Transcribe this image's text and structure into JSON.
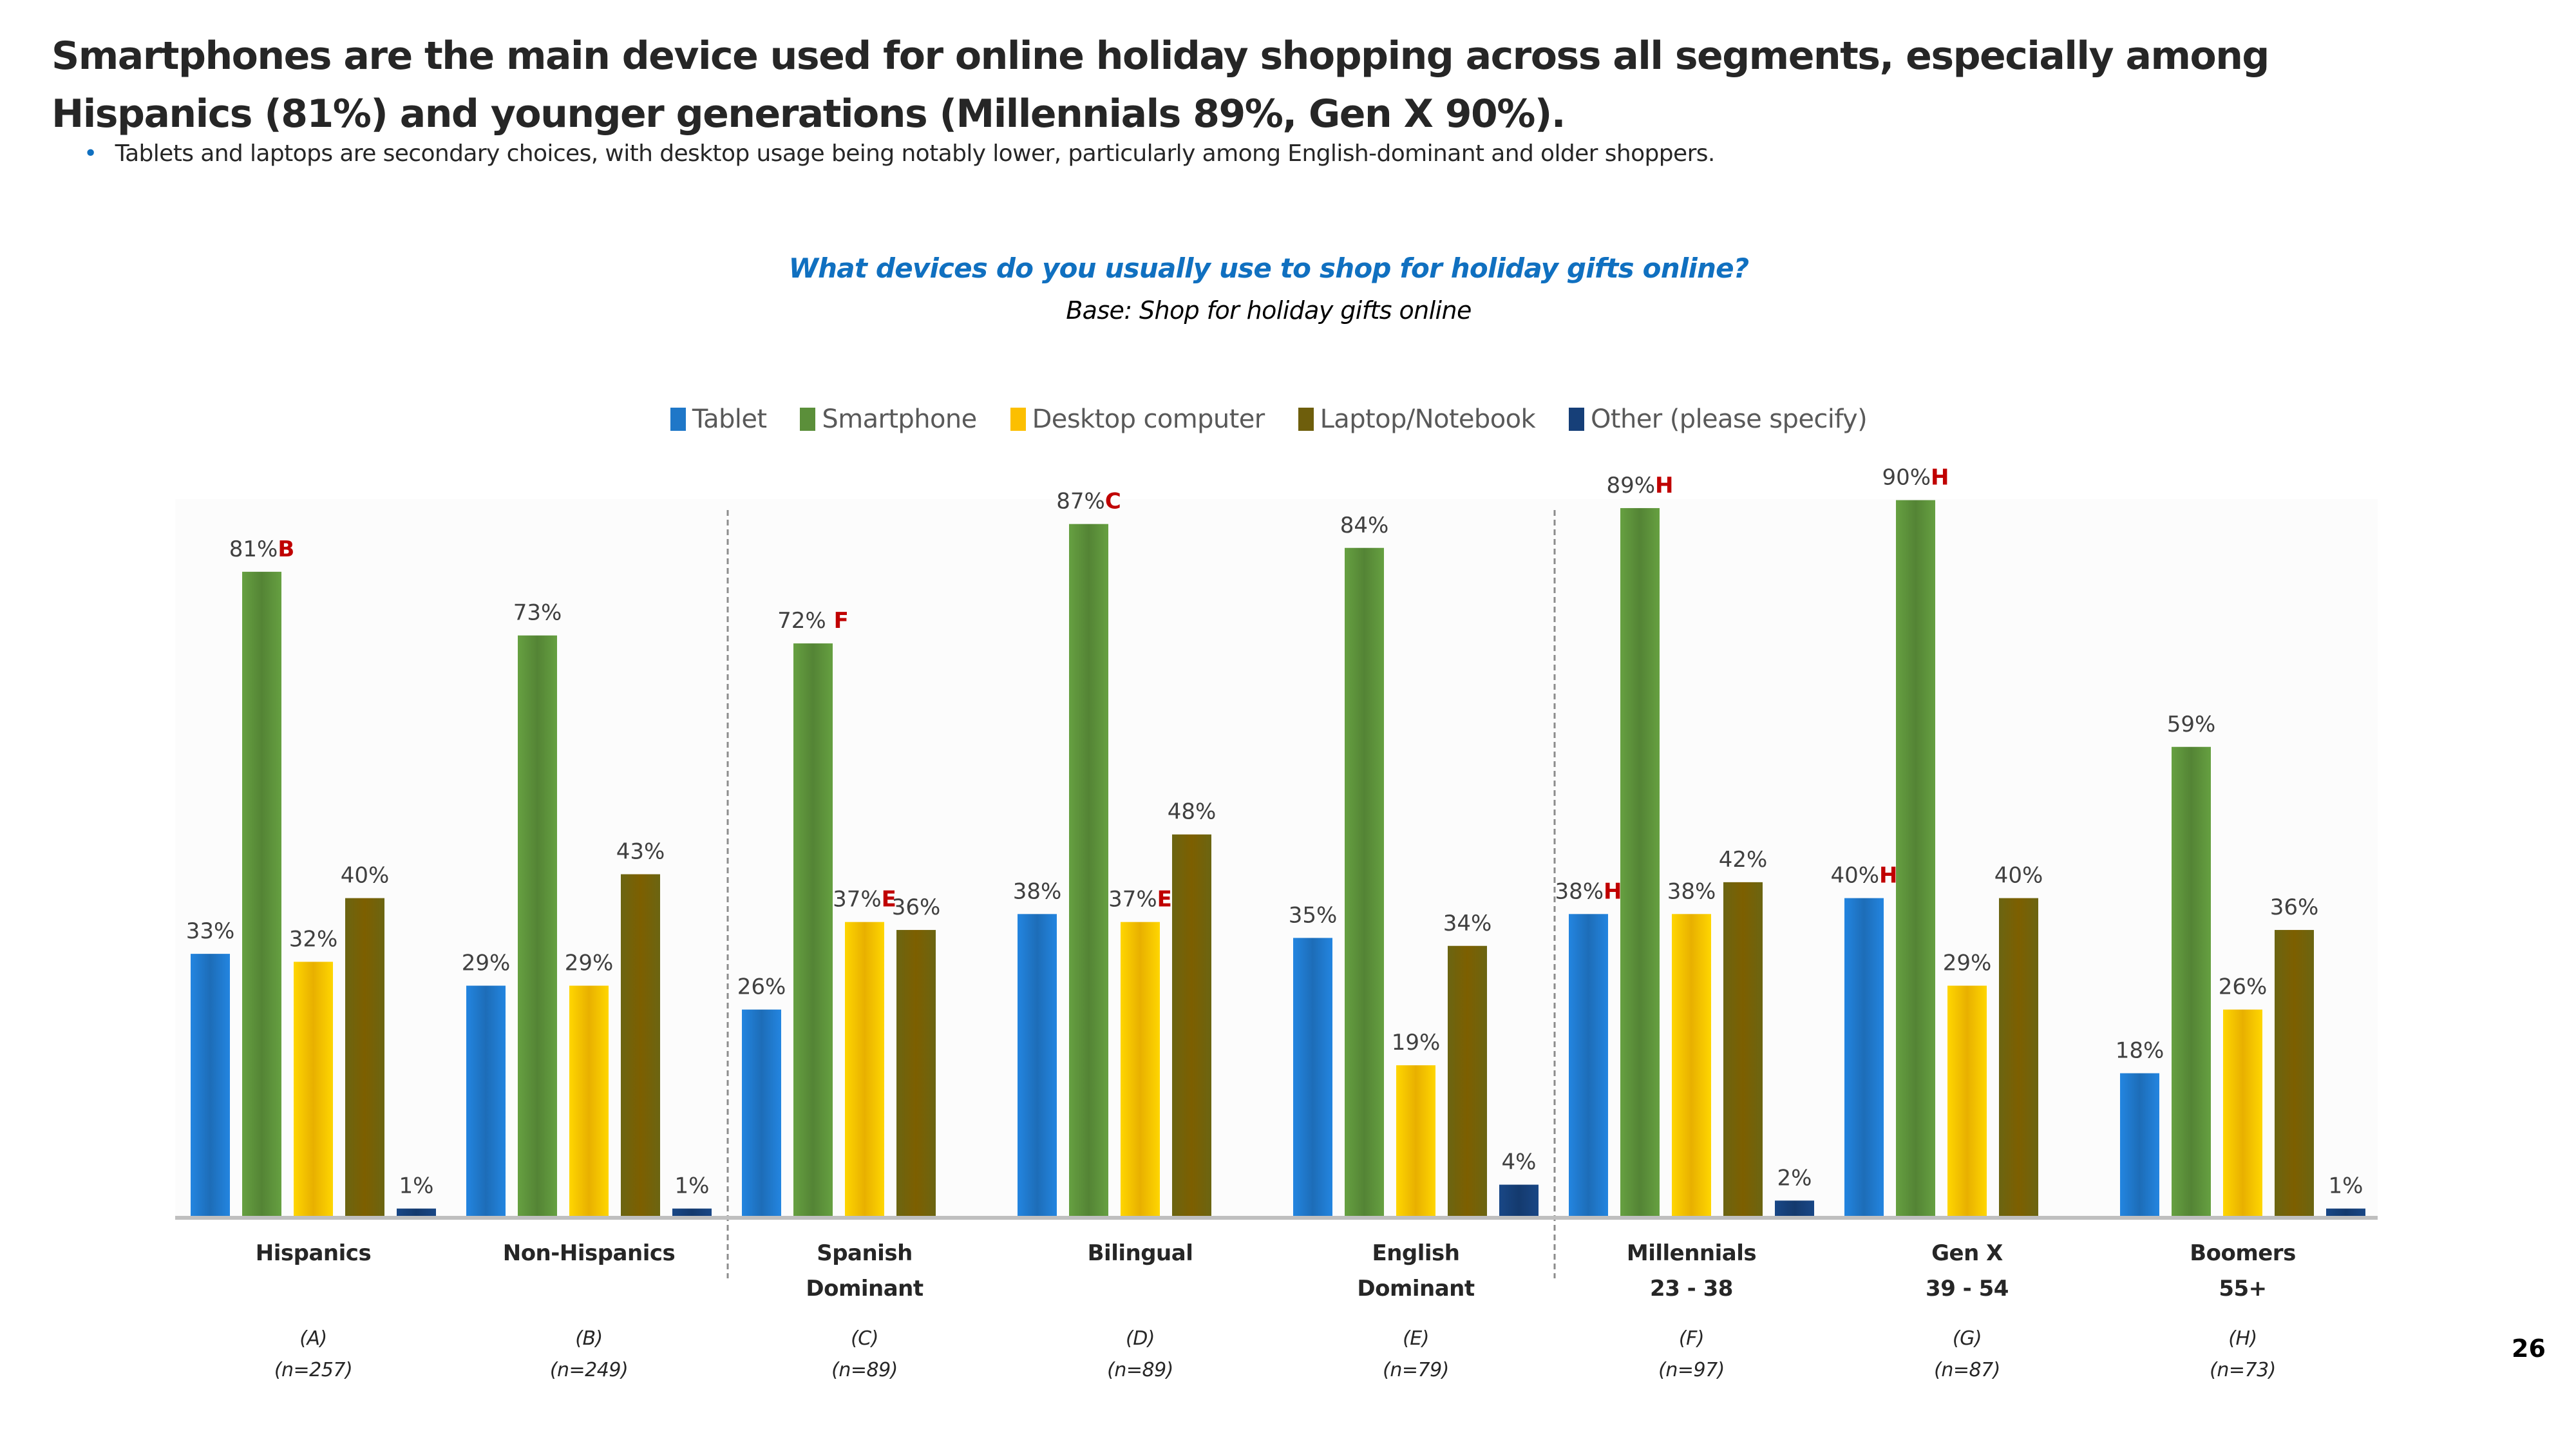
{
  "slide": {
    "title": "Smartphones are the main device used for online holiday shopping across all segments, especially among Hispanics (81%) and younger generations (Millennials 89%, Gen X 90%).",
    "bullet": "Tablets and laptops are secondary choices, with desktop usage being notably lower, particularly among English-dominant and older shoppers.",
    "page_number": "26",
    "accent_color": "#1070c0",
    "significance_color": "#c00000"
  },
  "chart_data": {
    "type": "bar",
    "title": "What devices do you usually use to shop for holiday gifts online?",
    "subtitle": "Base: Shop for holiday gifts online",
    "xlabel": "",
    "ylabel": "",
    "ylim": [
      0,
      100
    ],
    "grid": false,
    "legend_position": "top",
    "categories": [
      "Hispanics",
      "Non-Hispanics",
      "Spanish Dominant",
      "Bilingual",
      "English Dominant",
      "Millennials 23 - 38",
      "Gen X 39 - 54",
      "Boomers 55+"
    ],
    "category_lines": [
      [
        "Hispanics"
      ],
      [
        "Non-Hispanics"
      ],
      [
        "Spanish",
        "Dominant"
      ],
      [
        "Bilingual"
      ],
      [
        "English",
        "Dominant"
      ],
      [
        "Millennials",
        "23 - 38"
      ],
      [
        "Gen X",
        "39 - 54"
      ],
      [
        "Boomers",
        "55+"
      ]
    ],
    "group_letters": [
      "(A)",
      "(B)",
      "(C)",
      "(D)",
      "(E)",
      "(F)",
      "(G)",
      "(H)"
    ],
    "sample_sizes": [
      "(n=257)",
      "(n=249)",
      "(n=89)",
      "(n=89)",
      "(n=79)",
      "(n=97)",
      "(n=87)",
      "(n=73)"
    ],
    "series": [
      {
        "name": "Tablet",
        "color": "#1f77c8",
        "values": [
          33,
          29,
          26,
          38,
          35,
          38,
          40,
          18
        ],
        "sig": [
          "",
          "",
          "",
          "",
          "",
          "H",
          "H",
          ""
        ]
      },
      {
        "name": "Smartphone",
        "color": "#5b8f3a",
        "values": [
          81,
          73,
          72,
          87,
          84,
          89,
          90,
          59
        ],
        "sig": [
          "B",
          "",
          "F",
          "C",
          "",
          "H",
          "H",
          ""
        ]
      },
      {
        "name": "Desktop computer",
        "color": "#fcbf00",
        "values": [
          32,
          29,
          37,
          37,
          19,
          38,
          29,
          26
        ],
        "sig": [
          "",
          "",
          "E",
          "E",
          "",
          "",
          "",
          ""
        ]
      },
      {
        "name": "Laptop/Notebook",
        "color": "#6e5e0c",
        "values": [
          40,
          43,
          36,
          48,
          34,
          42,
          40,
          36
        ],
        "sig": [
          "",
          "",
          "",
          "",
          "",
          "",
          "",
          ""
        ]
      },
      {
        "name": "Other (please specify)",
        "color": "#163f78",
        "values": [
          1,
          1,
          null,
          null,
          4,
          2,
          null,
          1
        ],
        "sig": [
          "",
          "",
          "",
          "",
          "",
          "",
          "",
          ""
        ]
      }
    ],
    "value_suffix": "%"
  }
}
